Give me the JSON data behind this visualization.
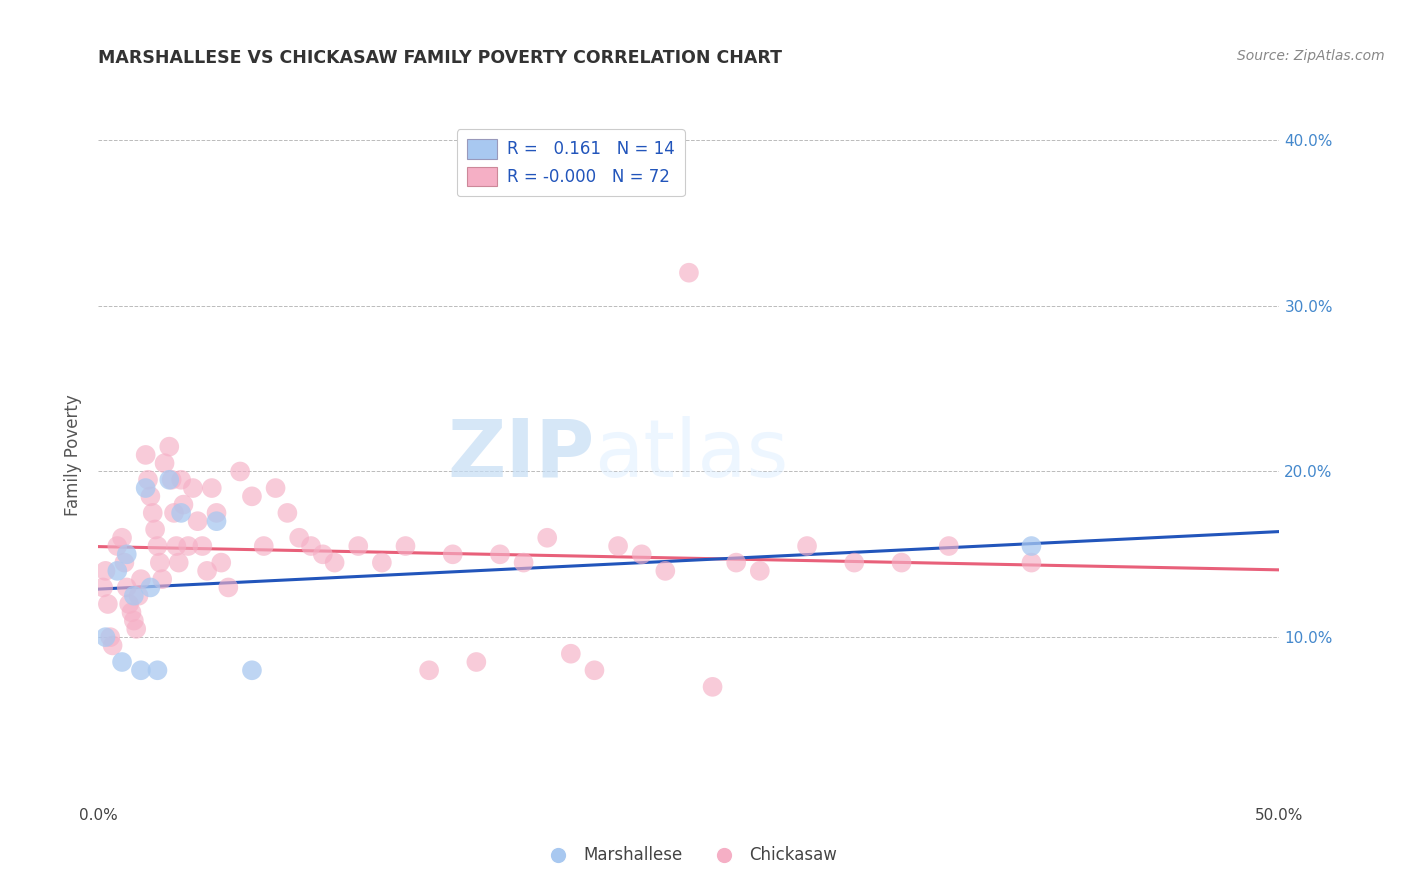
{
  "title": "MARSHALLESE VS CHICKASAW FAMILY POVERTY CORRELATION CHART",
  "source": "Source: ZipAtlas.com",
  "ylabel": "Family Poverty",
  "xlim": [
    0.0,
    0.5
  ],
  "ylim": [
    0.0,
    0.42
  ],
  "xticks": [
    0.0,
    0.1,
    0.2,
    0.3,
    0.4,
    0.5
  ],
  "xticklabels": [
    "0.0%",
    "",
    "",
    "",
    "",
    "50.0%"
  ],
  "yticks_left": [
    0.0,
    0.1,
    0.2,
    0.3,
    0.4
  ],
  "yticklabels_left": [
    "",
    "",
    "",
    "",
    ""
  ],
  "yticks_right": [
    0.1,
    0.2,
    0.3,
    0.4
  ],
  "yticklabels_right": [
    "10.0%",
    "20.0%",
    "30.0%",
    "40.0%"
  ],
  "legend_r_blue": "0.161",
  "legend_n_blue": "14",
  "legend_r_pink": "-0.000",
  "legend_n_pink": "72",
  "blue_color": "#a8c8f0",
  "pink_color": "#f5afc5",
  "line_blue": "#2255bb",
  "line_pink": "#e8607a",
  "grid_color": "#bbbbbb",
  "watermark_zip": "ZIP",
  "watermark_atlas": "atlas",
  "marshallese_x": [
    0.003,
    0.008,
    0.01,
    0.012,
    0.015,
    0.018,
    0.02,
    0.022,
    0.025,
    0.03,
    0.035,
    0.05,
    0.065,
    0.395
  ],
  "marshallese_y": [
    0.1,
    0.14,
    0.085,
    0.15,
    0.125,
    0.08,
    0.19,
    0.13,
    0.08,
    0.195,
    0.175,
    0.17,
    0.08,
    0.155
  ],
  "chickasaw_x": [
    0.002,
    0.003,
    0.004,
    0.005,
    0.006,
    0.008,
    0.01,
    0.011,
    0.012,
    0.013,
    0.014,
    0.015,
    0.016,
    0.017,
    0.018,
    0.02,
    0.021,
    0.022,
    0.023,
    0.024,
    0.025,
    0.026,
    0.027,
    0.028,
    0.03,
    0.031,
    0.032,
    0.033,
    0.034,
    0.035,
    0.036,
    0.038,
    0.04,
    0.042,
    0.044,
    0.046,
    0.048,
    0.05,
    0.052,
    0.055,
    0.06,
    0.065,
    0.07,
    0.075,
    0.08,
    0.085,
    0.09,
    0.095,
    0.1,
    0.11,
    0.12,
    0.13,
    0.14,
    0.15,
    0.16,
    0.17,
    0.18,
    0.19,
    0.2,
    0.21,
    0.22,
    0.23,
    0.24,
    0.25,
    0.26,
    0.27,
    0.28,
    0.3,
    0.32,
    0.34,
    0.36,
    0.395
  ],
  "chickasaw_y": [
    0.13,
    0.14,
    0.12,
    0.1,
    0.095,
    0.155,
    0.16,
    0.145,
    0.13,
    0.12,
    0.115,
    0.11,
    0.105,
    0.125,
    0.135,
    0.21,
    0.195,
    0.185,
    0.175,
    0.165,
    0.155,
    0.145,
    0.135,
    0.205,
    0.215,
    0.195,
    0.175,
    0.155,
    0.145,
    0.195,
    0.18,
    0.155,
    0.19,
    0.17,
    0.155,
    0.14,
    0.19,
    0.175,
    0.145,
    0.13,
    0.2,
    0.185,
    0.155,
    0.19,
    0.175,
    0.16,
    0.155,
    0.15,
    0.145,
    0.155,
    0.145,
    0.155,
    0.08,
    0.15,
    0.085,
    0.15,
    0.145,
    0.16,
    0.09,
    0.08,
    0.155,
    0.15,
    0.14,
    0.32,
    0.07,
    0.145,
    0.14,
    0.155,
    0.145,
    0.145,
    0.155,
    0.145
  ],
  "label_marshallese": "Marshallese",
  "label_chickasaw": "Chickasaw"
}
